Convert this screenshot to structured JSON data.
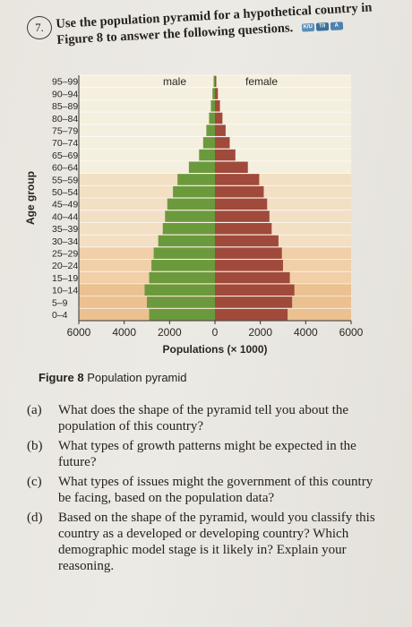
{
  "question": {
    "number": "7.",
    "text": "Use the population pyramid for a hypothetical country in Figure 8 to answer the following questions.",
    "badges": [
      "K/U",
      "T/I",
      "A"
    ]
  },
  "figure_caption": {
    "label": "Figure 8",
    "text": "Population pyramid"
  },
  "chart_data": {
    "type": "bar",
    "orientation": "horizontal-pyramid",
    "title": "",
    "xlabel": "Populations (× 1000)",
    "ylabel": "Age group",
    "xlim": [
      -6000,
      6000
    ],
    "x_ticks": [
      "6000",
      "4000",
      "2000",
      "0",
      "2000",
      "4000",
      "6000"
    ],
    "grid": true,
    "series_labels_on_chart": [
      "male",
      "female"
    ],
    "categories": [
      "95–99",
      "90–94",
      "85–89",
      "80–84",
      "75–79",
      "70–74",
      "65–69",
      "60–64",
      "55–59",
      "50–54",
      "45–49",
      "40–44",
      "35–39",
      "30–34",
      "25–29",
      "20–24",
      "15–19",
      "10–14",
      "5–9",
      "0–4"
    ],
    "series": [
      {
        "name": "male",
        "color": "#6b9a3c",
        "values": [
          60,
          110,
          180,
          260,
          380,
          520,
          700,
          1150,
          1650,
          1850,
          2100,
          2200,
          2300,
          2500,
          2700,
          2800,
          2900,
          3100,
          3000,
          2900
        ]
      },
      {
        "name": "female",
        "color": "#a04a3c",
        "values": [
          60,
          130,
          220,
          330,
          470,
          650,
          900,
          1450,
          1950,
          2150,
          2300,
          2400,
          2500,
          2800,
          2950,
          3000,
          3300,
          3500,
          3400,
          3200
        ]
      }
    ]
  },
  "questions": [
    {
      "label": "(a)",
      "text": "What does the shape of the pyramid tell you about the population of this country?"
    },
    {
      "label": "(b)",
      "text": "What types of growth patterns might be expected in the future?"
    },
    {
      "label": "(c)",
      "text": "What types of issues might the government of this country be facing, based on the population data?"
    },
    {
      "label": "(d)",
      "text": "Based on the shape of the pyramid, would you classify this country as a developed or developing country? Which demographic model stage is it likely in? Explain your reasoning."
    }
  ]
}
